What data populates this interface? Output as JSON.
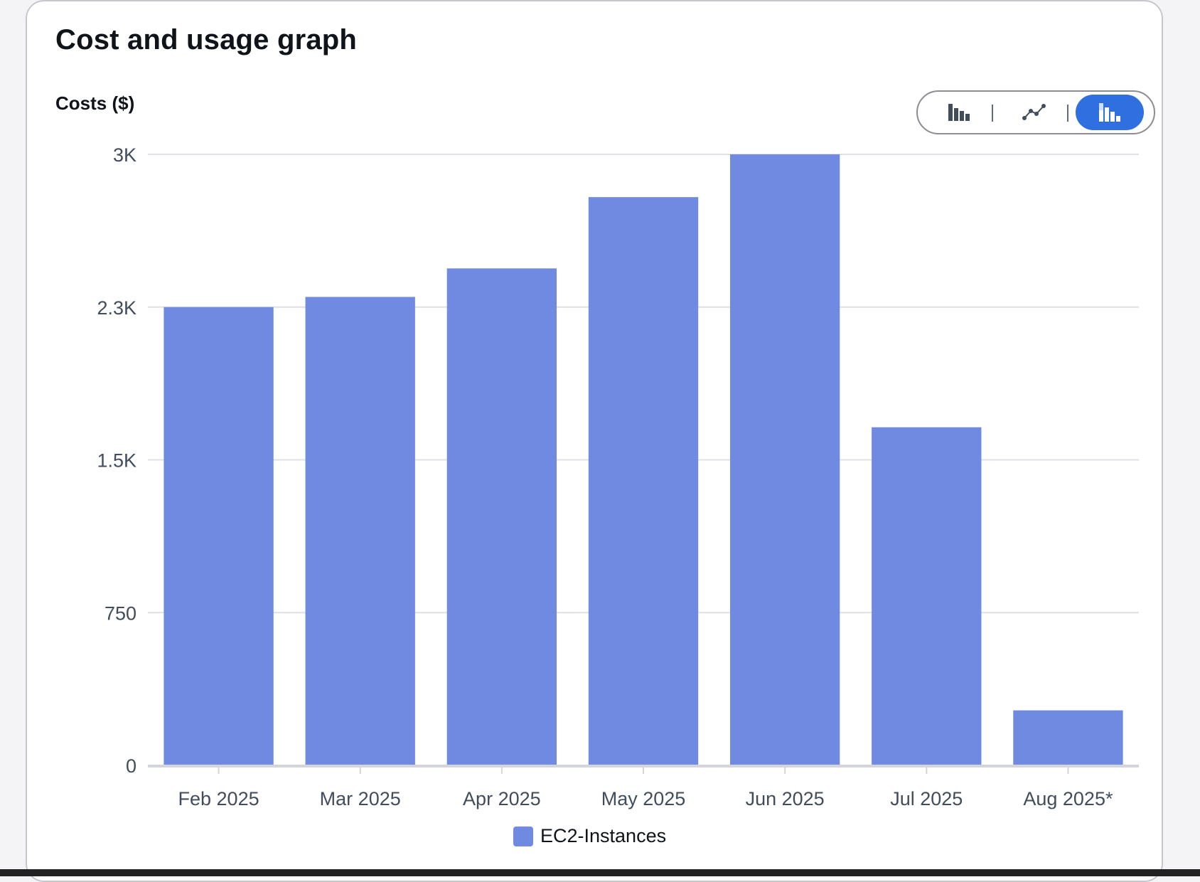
{
  "title": "Cost and usage graph",
  "controls": {
    "options": [
      {
        "name": "bar-chart-icon",
        "active": false
      },
      {
        "name": "line-chart-icon",
        "active": false
      },
      {
        "name": "stacked-bar-chart-icon",
        "active": true
      }
    ]
  },
  "colors": {
    "bar": "#6f8ae0",
    "accent": "#2f6fe0",
    "grid": "#e0e0e6",
    "axis": "#d4d4dc"
  },
  "chart_data": {
    "type": "bar",
    "title": "",
    "ylabel": "Costs ($)",
    "xlabel": "",
    "categories": [
      "Feb 2025",
      "Mar 2025",
      "Apr 2025",
      "May 2025",
      "Jun 2025",
      "Jul 2025",
      "Aug 2025*"
    ],
    "series": [
      {
        "name": "EC2-Instances",
        "values": [
          2250,
          2300,
          2440,
          2790,
          3000,
          1660,
          270
        ]
      }
    ],
    "ylim": [
      0,
      3000
    ],
    "yticks": [
      0,
      750,
      1500,
      2250,
      3000
    ],
    "ytick_labels": [
      "0",
      "750",
      "1.5K",
      "2.3K",
      "3K"
    ],
    "grid": true,
    "legend_position": "bottom-center"
  }
}
